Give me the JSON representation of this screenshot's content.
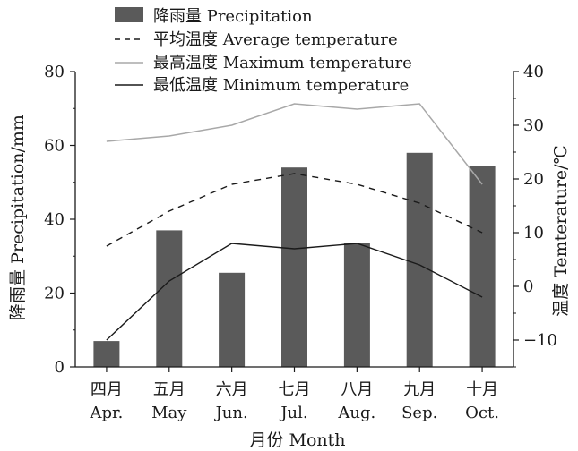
{
  "chart_data": {
    "type": "bar",
    "categories": [
      {
        "cn": "四月",
        "en": "Apr."
      },
      {
        "cn": "五月",
        "en": "May"
      },
      {
        "cn": "六月",
        "en": "Jun."
      },
      {
        "cn": "七月",
        "en": "Jul."
      },
      {
        "cn": "八月",
        "en": "Aug."
      },
      {
        "cn": "九月",
        "en": "Sep."
      },
      {
        "cn": "十月",
        "en": "Oct."
      }
    ],
    "series": [
      {
        "name": "降雨量 Precipitation",
        "type": "bar",
        "axis": "left",
        "values": [
          7,
          37,
          25.5,
          54,
          33.5,
          58,
          54.5
        ]
      },
      {
        "name": "平均温度 Average temperature",
        "type": "line",
        "style": "dashed",
        "axis": "right",
        "values": [
          7.5,
          14,
          19,
          21,
          19,
          15.5,
          10
        ]
      },
      {
        "name": "最高温度 Maximum temperature",
        "type": "line",
        "style": "solid-gray",
        "axis": "right",
        "values": [
          27,
          28,
          30,
          34,
          33,
          34,
          19
        ]
      },
      {
        "name": "最低温度 Minimum temperature",
        "type": "line",
        "style": "solid-black",
        "axis": "right",
        "values": [
          -10,
          1,
          8,
          7,
          8,
          4,
          -2
        ]
      }
    ],
    "xlabel": "月份 Month",
    "ylabel_left": "降雨量 Precipitation/mm",
    "ylabel_right": "温度 Temterature/℃",
    "ylim_left": [
      0,
      80
    ],
    "ylim_right": [
      -15,
      40
    ],
    "yticks_left": [
      0,
      20,
      40,
      60,
      80
    ],
    "yticks_right": [
      -10,
      0,
      10,
      20,
      30,
      40
    ],
    "legend": "top-center",
    "grid": false,
    "colors": {
      "bar": "#5a5a5a",
      "avg": "#1a1a1a",
      "max": "#a8a8a8",
      "min": "#1a1a1a",
      "axis": "#1a1a1a"
    }
  }
}
